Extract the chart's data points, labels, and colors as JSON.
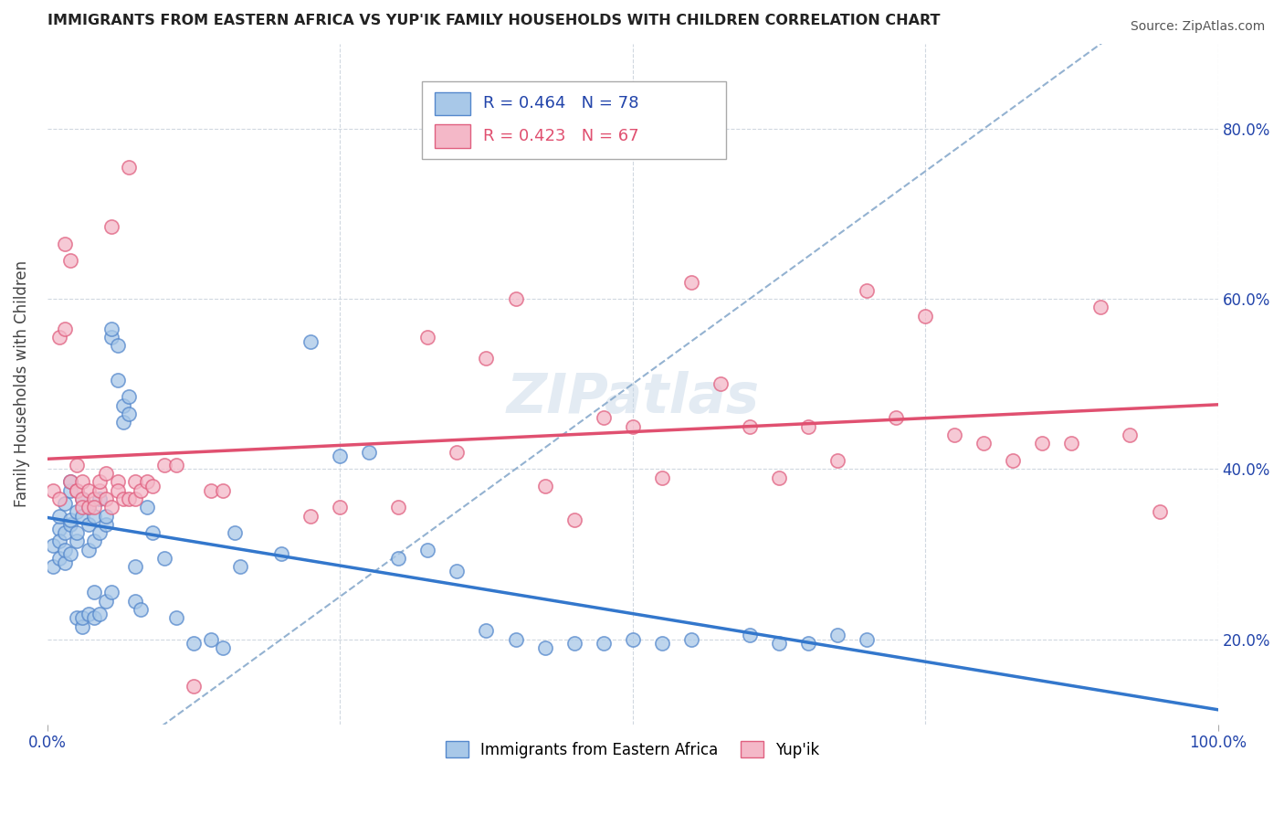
{
  "title": "IMMIGRANTS FROM EASTERN AFRICA VS YUP'IK FAMILY HOUSEHOLDS WITH CHILDREN CORRELATION CHART",
  "source": "Source: ZipAtlas.com",
  "ylabel": "Family Households with Children",
  "legend1_label": "Immigrants from Eastern Africa",
  "legend2_label": "Yup'ik",
  "r1": 0.464,
  "n1": 78,
  "r2": 0.423,
  "n2": 67,
  "color_blue": "#a8c8e8",
  "color_pink": "#f4b8c8",
  "edge_blue": "#5588cc",
  "edge_pink": "#e06080",
  "trend_blue": "#3377cc",
  "trend_pink": "#e05070",
  "dashed_color": "#88aacc",
  "watermark_color": "#c8d8e8",
  "blue_scatter": [
    [
      0.001,
      0.285
    ],
    [
      0.001,
      0.31
    ],
    [
      0.002,
      0.295
    ],
    [
      0.002,
      0.33
    ],
    [
      0.002,
      0.315
    ],
    [
      0.002,
      0.345
    ],
    [
      0.003,
      0.29
    ],
    [
      0.003,
      0.325
    ],
    [
      0.003,
      0.36
    ],
    [
      0.003,
      0.305
    ],
    [
      0.004,
      0.335
    ],
    [
      0.004,
      0.375
    ],
    [
      0.004,
      0.3
    ],
    [
      0.004,
      0.34
    ],
    [
      0.004,
      0.385
    ],
    [
      0.005,
      0.315
    ],
    [
      0.005,
      0.35
    ],
    [
      0.005,
      0.225
    ],
    [
      0.005,
      0.325
    ],
    [
      0.006,
      0.365
    ],
    [
      0.006,
      0.215
    ],
    [
      0.006,
      0.345
    ],
    [
      0.006,
      0.225
    ],
    [
      0.007,
      0.355
    ],
    [
      0.007,
      0.305
    ],
    [
      0.007,
      0.335
    ],
    [
      0.007,
      0.23
    ],
    [
      0.008,
      0.255
    ],
    [
      0.008,
      0.315
    ],
    [
      0.008,
      0.345
    ],
    [
      0.008,
      0.225
    ],
    [
      0.009,
      0.325
    ],
    [
      0.009,
      0.365
    ],
    [
      0.009,
      0.23
    ],
    [
      0.01,
      0.335
    ],
    [
      0.01,
      0.245
    ],
    [
      0.01,
      0.345
    ],
    [
      0.011,
      0.255
    ],
    [
      0.011,
      0.555
    ],
    [
      0.011,
      0.565
    ],
    [
      0.012,
      0.545
    ],
    [
      0.012,
      0.505
    ],
    [
      0.013,
      0.475
    ],
    [
      0.013,
      0.455
    ],
    [
      0.014,
      0.485
    ],
    [
      0.014,
      0.465
    ],
    [
      0.015,
      0.285
    ],
    [
      0.015,
      0.245
    ],
    [
      0.016,
      0.235
    ],
    [
      0.017,
      0.355
    ],
    [
      0.018,
      0.325
    ],
    [
      0.02,
      0.295
    ],
    [
      0.022,
      0.225
    ],
    [
      0.025,
      0.195
    ],
    [
      0.028,
      0.2
    ],
    [
      0.03,
      0.19
    ],
    [
      0.032,
      0.325
    ],
    [
      0.033,
      0.285
    ],
    [
      0.04,
      0.3
    ],
    [
      0.045,
      0.55
    ],
    [
      0.05,
      0.415
    ],
    [
      0.055,
      0.42
    ],
    [
      0.06,
      0.295
    ],
    [
      0.065,
      0.305
    ],
    [
      0.07,
      0.28
    ],
    [
      0.075,
      0.21
    ],
    [
      0.08,
      0.2
    ],
    [
      0.085,
      0.19
    ],
    [
      0.09,
      0.195
    ],
    [
      0.095,
      0.195
    ],
    [
      0.1,
      0.2
    ],
    [
      0.105,
      0.195
    ],
    [
      0.11,
      0.2
    ],
    [
      0.12,
      0.205
    ],
    [
      0.125,
      0.195
    ],
    [
      0.13,
      0.195
    ],
    [
      0.135,
      0.205
    ],
    [
      0.14,
      0.2
    ]
  ],
  "pink_scatter": [
    [
      0.001,
      0.375
    ],
    [
      0.002,
      0.555
    ],
    [
      0.002,
      0.365
    ],
    [
      0.003,
      0.665
    ],
    [
      0.003,
      0.565
    ],
    [
      0.004,
      0.645
    ],
    [
      0.004,
      0.385
    ],
    [
      0.005,
      0.375
    ],
    [
      0.005,
      0.405
    ],
    [
      0.005,
      0.375
    ],
    [
      0.006,
      0.385
    ],
    [
      0.006,
      0.365
    ],
    [
      0.006,
      0.355
    ],
    [
      0.007,
      0.355
    ],
    [
      0.007,
      0.375
    ],
    [
      0.008,
      0.365
    ],
    [
      0.008,
      0.355
    ],
    [
      0.009,
      0.375
    ],
    [
      0.009,
      0.385
    ],
    [
      0.01,
      0.395
    ],
    [
      0.01,
      0.365
    ],
    [
      0.011,
      0.685
    ],
    [
      0.011,
      0.355
    ],
    [
      0.012,
      0.385
    ],
    [
      0.012,
      0.375
    ],
    [
      0.013,
      0.365
    ],
    [
      0.014,
      0.755
    ],
    [
      0.014,
      0.365
    ],
    [
      0.015,
      0.385
    ],
    [
      0.015,
      0.365
    ],
    [
      0.016,
      0.375
    ],
    [
      0.017,
      0.385
    ],
    [
      0.018,
      0.38
    ],
    [
      0.02,
      0.405
    ],
    [
      0.022,
      0.405
    ],
    [
      0.025,
      0.145
    ],
    [
      0.028,
      0.375
    ],
    [
      0.03,
      0.375
    ],
    [
      0.045,
      0.345
    ],
    [
      0.05,
      0.355
    ],
    [
      0.06,
      0.355
    ],
    [
      0.065,
      0.555
    ],
    [
      0.07,
      0.42
    ],
    [
      0.075,
      0.53
    ],
    [
      0.08,
      0.6
    ],
    [
      0.085,
      0.38
    ],
    [
      0.09,
      0.34
    ],
    [
      0.095,
      0.46
    ],
    [
      0.1,
      0.45
    ],
    [
      0.105,
      0.39
    ],
    [
      0.11,
      0.62
    ],
    [
      0.115,
      0.5
    ],
    [
      0.12,
      0.45
    ],
    [
      0.125,
      0.39
    ],
    [
      0.13,
      0.45
    ],
    [
      0.135,
      0.41
    ],
    [
      0.14,
      0.61
    ],
    [
      0.145,
      0.46
    ],
    [
      0.15,
      0.58
    ],
    [
      0.155,
      0.44
    ],
    [
      0.16,
      0.43
    ],
    [
      0.165,
      0.41
    ],
    [
      0.17,
      0.43
    ],
    [
      0.175,
      0.43
    ],
    [
      0.18,
      0.59
    ],
    [
      0.185,
      0.44
    ],
    [
      0.19,
      0.35
    ]
  ],
  "xlim": [
    0.0,
    0.2
  ],
  "ylim": [
    0.1,
    0.9
  ],
  "xtick_vals": [
    0.0,
    0.05,
    0.1,
    0.15,
    0.2
  ],
  "xtick_labels": [
    "0.0%",
    "",
    "",
    "",
    ""
  ],
  "ytick_vals": [
    0.2,
    0.4,
    0.6,
    0.8
  ],
  "ytick_labels": [
    "20.0%",
    "40.0%",
    "60.0%",
    "80.0%"
  ]
}
